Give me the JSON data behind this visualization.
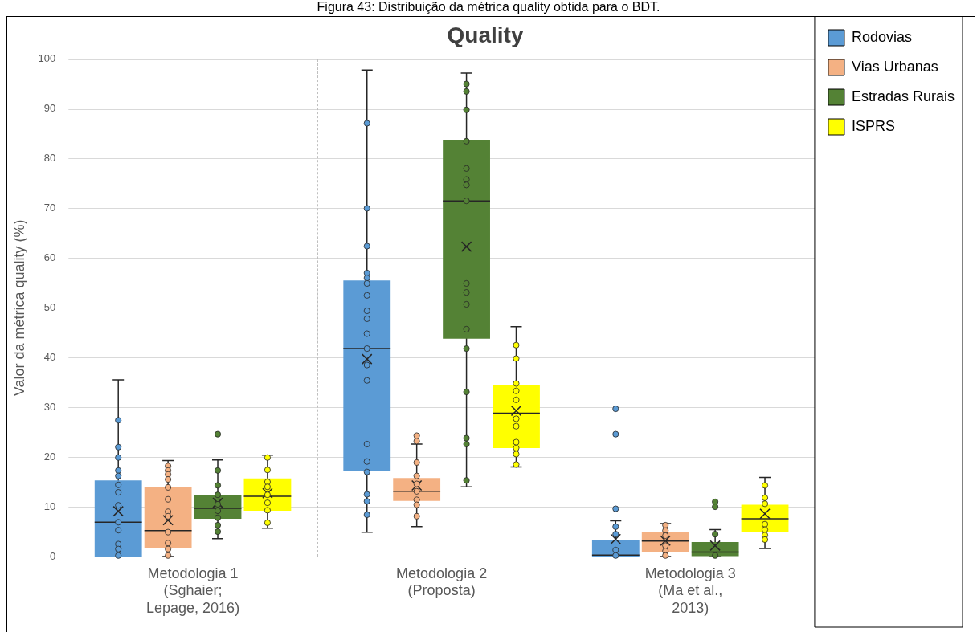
{
  "chart_data": {
    "type": "box",
    "title": "Quality",
    "ylabel": "Valor da métrica quality (%)",
    "annotations": [
      "Figura 43: Distribuição da métrica quality obtida para o BDT."
    ],
    "categories": [
      "Metodologia 1 (Sghaier; Lepage, 2016)",
      "Metodologia 2 (Proposta)",
      "Metodologia 3 (Ma et al., 2013)"
    ],
    "ylim": [
      0,
      100
    ],
    "yticks": [
      0,
      10,
      20,
      30,
      40,
      50,
      60,
      70,
      80,
      90,
      100
    ],
    "grid": true,
    "legend": "top right",
    "marker": "circle",
    "series": [
      {
        "type": "box",
        "name": "Rodovias",
        "color": "#5b9bd5",
        "boxes": [
          {
            "low": 0,
            "q1": 0,
            "median": 6.9,
            "q3": 15.3,
            "high": 35.5,
            "mean": 9.1,
            "outliers": [
              27.4,
              22.0,
              19.9,
              17.3,
              16.2,
              14.4,
              12.9,
              10.3,
              6.9,
              5.3,
              2.5,
              1.5,
              0.2
            ]
          },
          {
            "low": 4.9,
            "q1": 17.2,
            "median": 41.8,
            "q3": 55.5,
            "high": 97.8,
            "mean": 39.7,
            "outliers": [
              87.1,
              70.0,
              62.4,
              57.0,
              56.0,
              54.9,
              52.5,
              49.4,
              47.8,
              44.8,
              41.8,
              38.5,
              35.4,
              22.6,
              19.1,
              17.0,
              12.5,
              11.1,
              8.4
            ]
          },
          {
            "low": 0,
            "q1": 0,
            "median": 0.3,
            "q3": 3.4,
            "high": 7.2,
            "mean": 3.5,
            "outliers": [
              29.7,
              24.6,
              9.6,
              6.0,
              4.5,
              1.3,
              0.2
            ]
          }
        ]
      },
      {
        "type": "box",
        "name": "Vias Urbanas",
        "color": "#f4b183",
        "boxes": [
          {
            "low": 0,
            "q1": 1.6,
            "median": 5.2,
            "q3": 14.0,
            "high": 19.3,
            "mean": 7.3,
            "outliers": [
              18.2,
              17.3,
              16.5,
              15.5,
              13.9,
              11.5,
              9.0,
              8.1,
              4.9,
              2.7,
              1.5,
              0.2
            ]
          },
          {
            "low": 6.0,
            "q1": 11.2,
            "median": 13.1,
            "q3": 15.8,
            "high": 22.6,
            "mean": 14.3,
            "outliers": [
              24.3,
              23.2,
              18.9,
              16.2,
              14.6,
              13.1,
              11.4,
              10.4,
              8.1
            ]
          },
          {
            "low": 0,
            "q1": 0.9,
            "median": 3.1,
            "q3": 4.9,
            "high": 6.6,
            "mean": 3.2,
            "outliers": [
              6.3,
              5.2,
              4.2,
              2.2,
              1.1,
              0.2
            ]
          }
        ]
      },
      {
        "type": "box",
        "name": "Estradas Rurais",
        "color": "#548235",
        "boxes": [
          {
            "low": 3.6,
            "q1": 7.6,
            "median": 9.7,
            "q3": 12.4,
            "high": 19.4,
            "mean": 10.8,
            "outliers": [
              24.6,
              17.3,
              14.3,
              12.4,
              10.5,
              9.2,
              7.8,
              6.3,
              5.0
            ]
          },
          {
            "low": 14.0,
            "q1": 43.8,
            "median": 71.5,
            "q3": 83.8,
            "high": 97.2,
            "mean": 62.3,
            "outliers": [
              95.0,
              93.5,
              89.8,
              83.5,
              78.0,
              75.8,
              74.7,
              71.5,
              54.9,
              53.1,
              50.7,
              45.7,
              41.8,
              33.1,
              23.8,
              22.6,
              15.3
            ]
          },
          {
            "low": 0,
            "q1": 0.1,
            "median": 0.9,
            "q3": 2.9,
            "high": 5.4,
            "mean": 2.2,
            "outliers": [
              11.0,
              10.0,
              4.5,
              0.2
            ]
          }
        ]
      },
      {
        "type": "box",
        "name": "ISPRS",
        "color": "#ffff00",
        "boxes": [
          {
            "low": 5.7,
            "q1": 9.2,
            "median": 12.1,
            "q3": 15.7,
            "high": 20.4,
            "mean": 12.7,
            "outliers": [
              19.9,
              17.4,
              15.0,
              14.0,
              12.4,
              10.8,
              9.3,
              6.8
            ]
          },
          {
            "low": 18.0,
            "q1": 21.8,
            "median": 28.8,
            "q3": 34.5,
            "high": 46.2,
            "mean": 29.3,
            "outliers": [
              42.5,
              39.8,
              34.8,
              33.3,
              31.5,
              27.7,
              26.2,
              23.0,
              21.8,
              20.6,
              18.5
            ]
          },
          {
            "low": 1.6,
            "q1": 5.0,
            "median": 7.6,
            "q3": 10.4,
            "high": 15.9,
            "mean": 8.6,
            "outliers": [
              14.3,
              11.8,
              10.6,
              6.5,
              5.4,
              4.3,
              3.4
            ]
          }
        ]
      }
    ]
  }
}
